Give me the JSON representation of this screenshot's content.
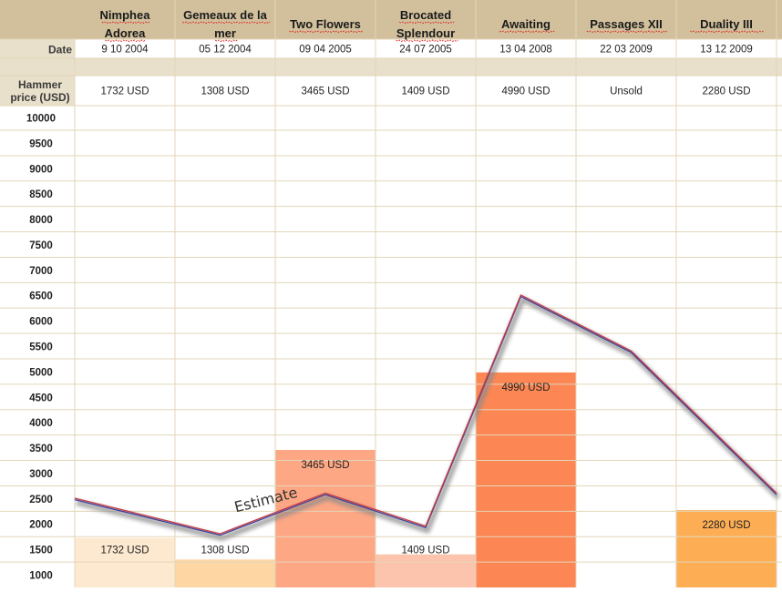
{
  "table": {
    "row_labels": {
      "date": "Date",
      "hammer_line1": "Hammer",
      "hammer_line2": "price (USD)"
    },
    "works": [
      {
        "title_lines": [
          "Nimphea",
          "Adorea"
        ],
        "date": "9 10 2004",
        "price": "1732 USD"
      },
      {
        "title_lines": [
          "Gemeaux de la",
          "mer"
        ],
        "date": "05 12 2004",
        "price": "1308 USD"
      },
      {
        "title_lines": [
          "Two Flowers"
        ],
        "date": "09 04 2005",
        "price": "3465 USD"
      },
      {
        "title_lines": [
          "Brocated",
          "Splendour"
        ],
        "date": "24 07 2005",
        "price": "1409 USD"
      },
      {
        "title_lines": [
          "Awaiting"
        ],
        "date": "13 04 2008",
        "price": "4990 USD"
      },
      {
        "title_lines": [
          "Passages XII"
        ],
        "date": "22 03 2009",
        "price": "Unsold"
      },
      {
        "title_lines": [
          "Duality III"
        ],
        "date": "13 12 2009",
        "price": "2280 USD"
      }
    ]
  },
  "chart_data": {
    "type": "bar",
    "categories": [
      "Nimphea Adorea",
      "Gemeaux de la mer",
      "Two Flowers",
      "Brocated Splendour",
      "Awaiting",
      "Passages XII",
      "Duality III"
    ],
    "series": [
      {
        "values": [
          1732,
          1308,
          3465,
          1409,
          4990,
          null,
          2280
        ]
      }
    ],
    "bar_labels": [
      "1732 USD",
      "1308 USD",
      "3465 USD",
      "1409 USD",
      "4990 USD",
      "",
      "2280 USD"
    ],
    "estimate_line": {
      "label": "Estimate",
      "x": [
        0,
        1.45,
        2.5,
        3.5,
        4.45,
        5.55,
        7
      ],
      "values": [
        2500,
        1800,
        2600,
        1950,
        6500,
        5400,
        2600
      ]
    },
    "y_ticks": [
      10000,
      9500,
      9000,
      8500,
      8000,
      7500,
      7000,
      6500,
      6000,
      5500,
      5000,
      4500,
      4000,
      3500,
      3000,
      2500,
      2000,
      1500,
      1000
    ],
    "ylim": [
      1000,
      10000
    ],
    "grid": true,
    "colors": {
      "bars": [
        "#fde9cf",
        "#fdd6a4",
        "#fda784",
        "#fcc4ac",
        "#fc8755",
        "#ffffff",
        "#fdae55"
      ],
      "header": "#d2c09c",
      "header_light": "#e9e0cb",
      "grid": "#e3d6ba",
      "estimate_line_a": "#c63b45",
      "estimate_line_b": "#3c3f9c",
      "estimate_shadow": "#8a8a8a"
    }
  }
}
